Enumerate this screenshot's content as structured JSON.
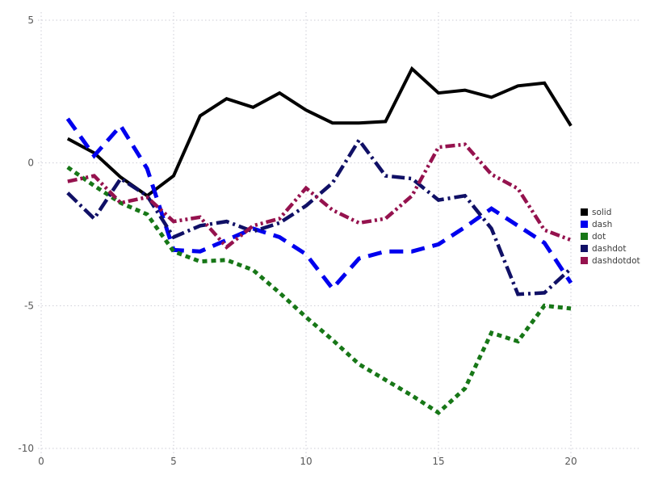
{
  "chart_data": {
    "type": "line",
    "title": "",
    "xlabel": "",
    "ylabel": "",
    "xlim": [
      0,
      20
    ],
    "ylim": [
      -10,
      5
    ],
    "grid": true,
    "grid_style": "dotted",
    "grid_color": "#cdcdd6",
    "background_color": "#ffffff",
    "legend_position": "right-outside",
    "x_ticks": [
      "0",
      "5",
      "10",
      "15",
      "20"
    ],
    "x_tick_values": [
      0,
      5,
      10,
      15,
      20
    ],
    "y_ticks": [
      "5",
      "0",
      "-5",
      "-10"
    ],
    "y_tick_values": [
      5,
      0,
      -5,
      -10
    ],
    "x": [
      1,
      2,
      3,
      4,
      5,
      6,
      7,
      8,
      9,
      10,
      11,
      12,
      13,
      14,
      15,
      16,
      17,
      18,
      19,
      20
    ],
    "series": [
      {
        "name": "solid",
        "color": "#000000",
        "line_style": "solid",
        "line_width": 4,
        "values": [
          0.85,
          0.35,
          -0.5,
          -1.15,
          -0.45,
          1.65,
          2.25,
          1.95,
          2.45,
          1.85,
          1.4,
          1.4,
          1.45,
          3.3,
          2.45,
          2.55,
          2.3,
          2.7,
          2.8,
          1.3
        ]
      },
      {
        "name": "dash",
        "color": "#0000ee",
        "line_style": "dash",
        "line_width": 5,
        "values": [
          1.55,
          0.25,
          1.3,
          -0.2,
          -3.05,
          -3.1,
          -2.7,
          -2.3,
          -2.6,
          -3.2,
          -4.4,
          -3.35,
          -3.1,
          -3.1,
          -2.85,
          -2.25,
          -1.6,
          -2.2,
          -2.8,
          -4.2
        ]
      },
      {
        "name": "dot",
        "color": "#177717",
        "line_style": "dot",
        "line_width": 5,
        "values": [
          -0.15,
          -0.8,
          -1.4,
          -1.8,
          -3.1,
          -3.45,
          -3.4,
          -3.75,
          -4.55,
          -5.4,
          -6.2,
          -7.05,
          -7.6,
          -8.15,
          -8.75,
          -7.9,
          -5.95,
          -6.25,
          -5.0,
          -5.1
        ]
      },
      {
        "name": "dashdot",
        "color": "#101066",
        "line_style": "dashdot",
        "line_width": 4.5,
        "values": [
          -1.05,
          -1.95,
          -0.55,
          -1.15,
          -2.6,
          -2.2,
          -2.05,
          -2.4,
          -2.1,
          -1.5,
          -0.7,
          0.8,
          -0.45,
          -0.55,
          -1.3,
          -1.15,
          -2.3,
          -4.6,
          -4.55,
          -3.7
        ]
      },
      {
        "name": "dashdotdot",
        "color": "#95124e",
        "line_style": "dashdotdot",
        "line_width": 4.5,
        "values": [
          -0.65,
          -0.45,
          -1.4,
          -1.2,
          -2.05,
          -1.9,
          -2.95,
          -2.2,
          -1.95,
          -0.88,
          -1.65,
          -2.1,
          -1.95,
          -1.15,
          0.55,
          0.65,
          -0.4,
          -0.9,
          -2.35,
          -2.7
        ]
      }
    ],
    "legend": {
      "items": [
        {
          "label": "solid",
          "swatch_color": "#000000"
        },
        {
          "label": "dash",
          "swatch_color": "#0000ee"
        },
        {
          "label": "dot",
          "swatch_color": "#177717"
        },
        {
          "label": "dashdot",
          "swatch_color": "#101066"
        },
        {
          "label": "dashdotdot",
          "swatch_color": "#95124e"
        }
      ]
    }
  }
}
